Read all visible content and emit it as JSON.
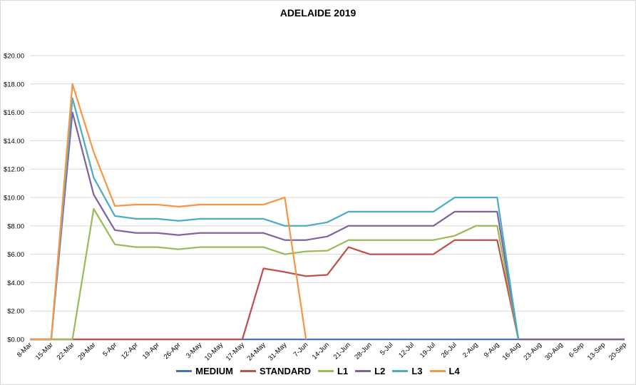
{
  "chart_data": {
    "type": "line",
    "title": "ADELAIDE 2019",
    "x": [
      "8-Mar",
      "15-Mar",
      "22-Mar",
      "29-Mar",
      "5-Apr",
      "12-Apr",
      "19-Apr",
      "26-Apr",
      "3-May",
      "10-May",
      "17-May",
      "24-May",
      "31-May",
      "7-Jun",
      "14-Jun",
      "21-Jun",
      "28-Jun",
      "5-Jul",
      "12-Jul",
      "19-Jul",
      "26-Jul",
      "2-Aug",
      "9-Aug",
      "16-Aug",
      "23-Aug",
      "30-Aug",
      "6-Sep",
      "13-Sep",
      "20-Sep"
    ],
    "ylim": [
      0,
      20
    ],
    "yticks": [
      "$0.00",
      "$2.00",
      "$4.00",
      "$6.00",
      "$8.00",
      "$10.00",
      "$12.00",
      "$14.00",
      "$16.00",
      "$18.00",
      "$20.00"
    ],
    "grid": true,
    "legend_position": "bottom",
    "series": [
      {
        "name": "MEDIUM",
        "color": "#4472c4",
        "values": [
          0,
          0,
          0,
          0,
          0,
          0,
          0,
          0,
          0,
          0,
          0,
          0,
          0,
          0,
          0,
          0,
          0,
          0,
          0,
          0,
          0,
          0,
          0,
          0,
          0,
          0,
          0,
          0,
          0
        ]
      },
      {
        "name": "STANDARD",
        "color": "#c0504d",
        "values": [
          0,
          0,
          0,
          0,
          0,
          0,
          0,
          0,
          0,
          0,
          0,
          5,
          4.75,
          4.45,
          4.55,
          6.5,
          6,
          6,
          6,
          6,
          7,
          7,
          7,
          0,
          0,
          0,
          0,
          0,
          0
        ]
      },
      {
        "name": "L1",
        "color": "#9bbb59",
        "values": [
          0,
          0,
          0,
          9.2,
          6.7,
          6.5,
          6.5,
          6.35,
          6.5,
          6.5,
          6.5,
          6.5,
          6,
          6.2,
          6.25,
          7,
          7,
          7,
          7,
          7,
          7.3,
          8,
          8,
          0,
          0,
          0,
          0,
          0,
          0
        ]
      },
      {
        "name": "L2",
        "color": "#8064a2",
        "values": [
          0,
          0,
          16,
          10.2,
          7.7,
          7.5,
          7.5,
          7.35,
          7.5,
          7.5,
          7.5,
          7.5,
          7,
          7,
          7.25,
          8,
          8,
          8,
          8,
          8,
          9,
          9,
          9,
          0,
          0,
          0,
          0,
          0,
          0
        ]
      },
      {
        "name": "L3",
        "color": "#4bacc6",
        "values": [
          0,
          0,
          17,
          11.4,
          8.7,
          8.5,
          8.5,
          8.35,
          8.5,
          8.5,
          8.5,
          8.5,
          8,
          8,
          8.25,
          9,
          9,
          9,
          9,
          9,
          10,
          10,
          10,
          0,
          null,
          null,
          null,
          null,
          null
        ]
      },
      {
        "name": "L4",
        "color": "#f79646",
        "values": [
          0,
          0,
          18,
          13.2,
          9.4,
          9.5,
          9.5,
          9.35,
          9.5,
          9.5,
          9.5,
          9.5,
          10,
          0,
          null,
          null,
          null,
          null,
          null,
          null,
          null,
          null,
          null,
          null,
          null,
          null,
          null,
          null,
          null
        ]
      }
    ]
  }
}
